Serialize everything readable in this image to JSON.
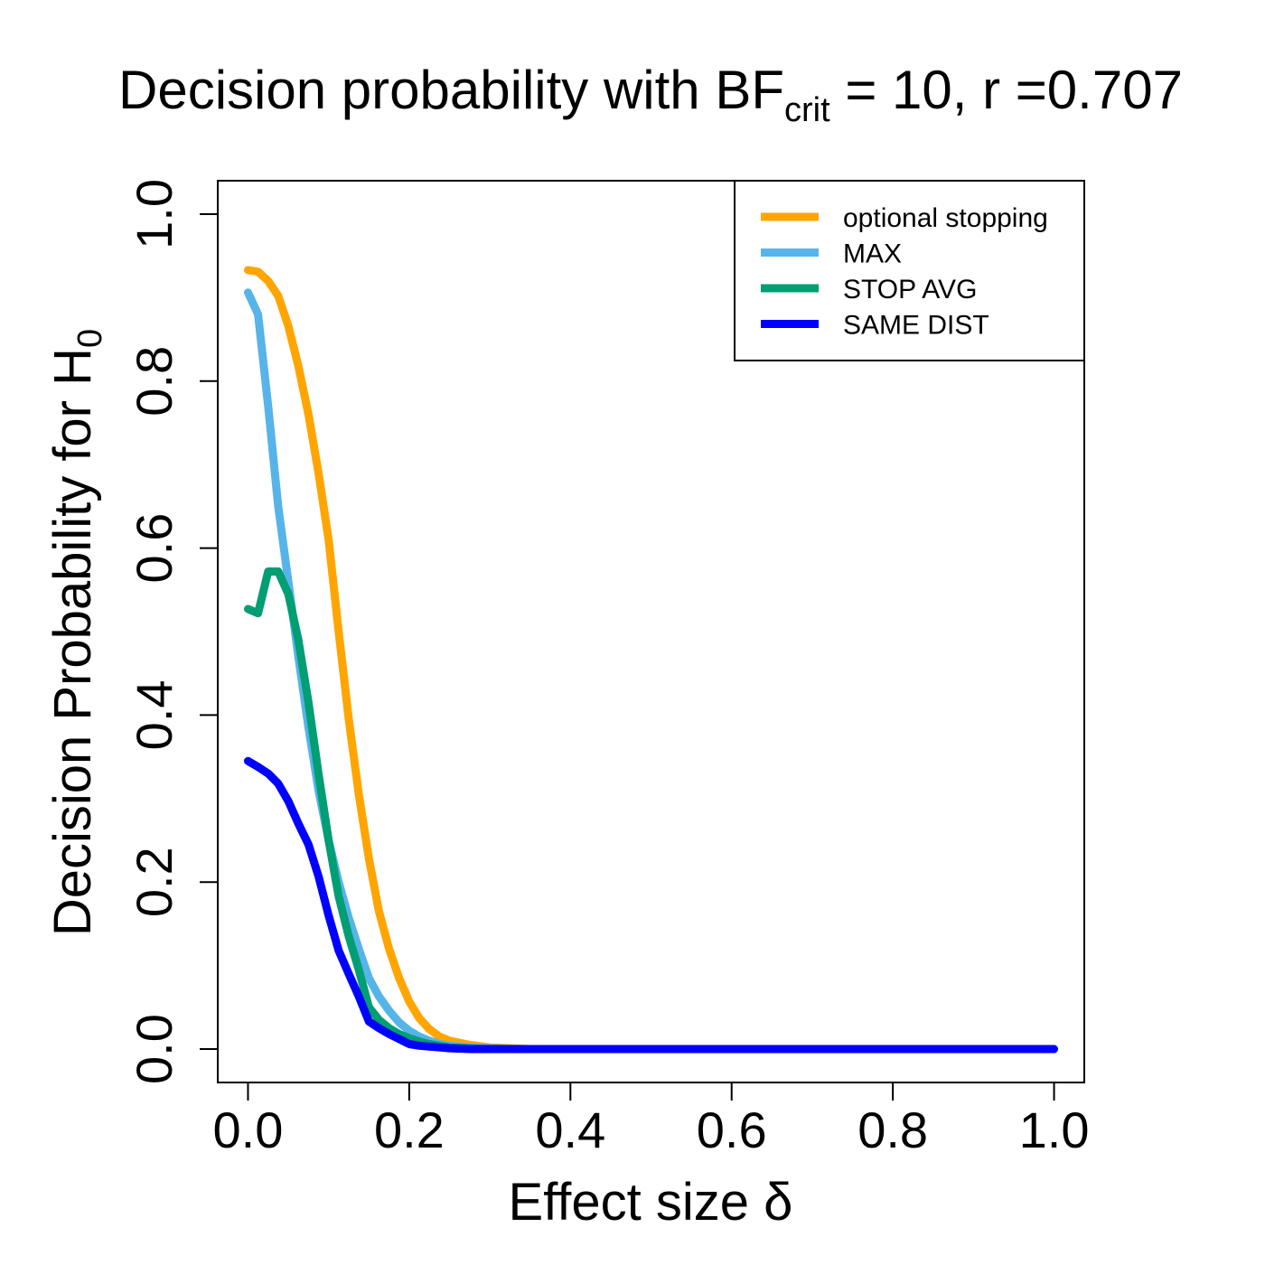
{
  "chart_data": {
    "type": "line",
    "title": {
      "prefix": "Decision probability with BF",
      "subscript": "crit",
      "suffix": " = 10, r =0.707"
    },
    "xlabel": "Effect size δ",
    "ylabel": {
      "main": "Decision Probability for H",
      "subscript": "0"
    },
    "xlim": [
      -0.0375,
      1.0375
    ],
    "ylim": [
      -0.04,
      1.04
    ],
    "xticks": [
      "0.0",
      "0.2",
      "0.4",
      "0.6",
      "0.8",
      "1.0"
    ],
    "yticks": [
      "0.0",
      "0.2",
      "0.4",
      "0.6",
      "0.8",
      "1.0"
    ],
    "grid": false,
    "legend_position": "top-right",
    "x": [
      0.0,
      0.0125,
      0.025,
      0.0375,
      0.05,
      0.0625,
      0.075,
      0.0875,
      0.1,
      0.1125,
      0.125,
      0.1375,
      0.15,
      0.1625,
      0.175,
      0.1875,
      0.2,
      0.2125,
      0.225,
      0.2375,
      0.25,
      0.275,
      0.3,
      0.325,
      0.35,
      0.4,
      0.5,
      0.6,
      0.7,
      0.8,
      0.9,
      1.0
    ],
    "series": [
      {
        "name": "optional stopping",
        "color": "#FFA500",
        "values": [
          0.933,
          0.931,
          0.92,
          0.902,
          0.866,
          0.818,
          0.76,
          0.69,
          0.61,
          0.5,
          0.395,
          0.305,
          0.228,
          0.165,
          0.12,
          0.085,
          0.057,
          0.037,
          0.024,
          0.015,
          0.01,
          0.005,
          0.002,
          0.001,
          0.0,
          0.0,
          0.0,
          0.0,
          0.0,
          0.0,
          0.0,
          0.0
        ]
      },
      {
        "name": "MAX",
        "color": "#56B4E9",
        "values": [
          0.906,
          0.88,
          0.77,
          0.65,
          0.56,
          0.47,
          0.385,
          0.31,
          0.25,
          0.2,
          0.157,
          0.12,
          0.085,
          0.063,
          0.046,
          0.032,
          0.022,
          0.015,
          0.01,
          0.006,
          0.004,
          0.002,
          0.001,
          0.0,
          0.0,
          0.0,
          0.0,
          0.0,
          0.0,
          0.0,
          0.0,
          0.0
        ]
      },
      {
        "name": "STOP AVG",
        "color": "#009E73",
        "values": [
          0.527,
          0.522,
          0.572,
          0.572,
          0.545,
          0.49,
          0.415,
          0.33,
          0.25,
          0.183,
          0.135,
          0.095,
          0.05,
          0.035,
          0.025,
          0.018,
          0.013,
          0.009,
          0.006,
          0.004,
          0.002,
          0.001,
          0.0,
          0.0,
          0.0,
          0.0,
          0.0,
          0.0,
          0.0,
          0.0,
          0.0,
          0.0
        ]
      },
      {
        "name": "SAME DIST",
        "color": "#0000FF",
        "values": [
          0.345,
          0.338,
          0.33,
          0.318,
          0.297,
          0.27,
          0.245,
          0.207,
          0.16,
          0.118,
          0.09,
          0.063,
          0.033,
          0.025,
          0.018,
          0.012,
          0.006,
          0.004,
          0.003,
          0.002,
          0.001,
          0.0,
          0.0,
          0.0,
          0.0,
          0.0,
          0.0,
          0.0,
          0.0,
          0.0,
          0.0,
          0.0
        ]
      }
    ]
  }
}
